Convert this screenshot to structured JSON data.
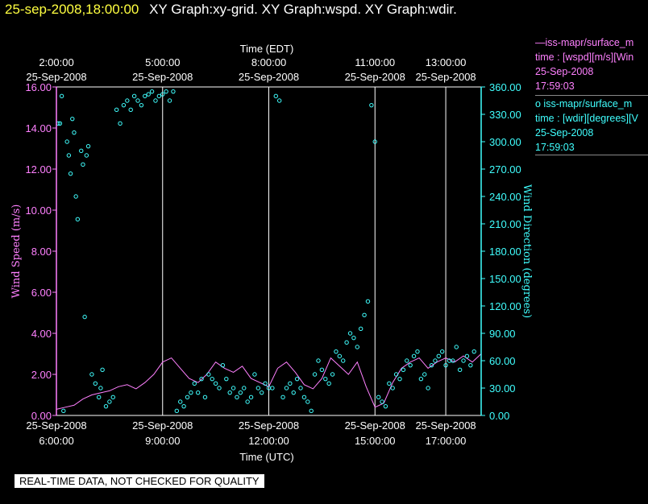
{
  "title": {
    "date": "25-sep-2008,18:00:00",
    "graphs": "XY Graph:xy-grid.  XY Graph:wspd.  XY Graph:wdir."
  },
  "legend": {
    "wspd": [
      "—iss-mapr/surface_m",
      "time : [wspd][m/s][Win",
      "25-Sep-2008",
      "17:59:03"
    ],
    "wdir": [
      "o  iss-mapr/surface_m",
      "time : [wdir][degrees][V",
      "25-Sep-2008",
      "17:59:03"
    ]
  },
  "disclaimer": "REAL-TIME DATA, NOT CHECKED FOR QUALITY",
  "colors": {
    "wspd": "#ff80ff",
    "wdir": "#40ffff",
    "grid": "#ffffff",
    "title_date": "#ffff40"
  },
  "chart_data": {
    "type": "scatter",
    "top_axis_title": "Time (EDT)",
    "top_ticks": [
      {
        "x": 6.0,
        "time": "2:00:00",
        "date": "25-Sep-2008"
      },
      {
        "x": 9.0,
        "time": "5:00:00",
        "date": "25-Sep-2008"
      },
      {
        "x": 12.0,
        "time": "8:00:00",
        "date": "25-Sep-2008"
      },
      {
        "x": 15.0,
        "time": "11:00:00",
        "date": "25-Sep-2008"
      },
      {
        "x": 17.0,
        "time": "13:00:00",
        "date": "25-Sep-2008"
      }
    ],
    "bottom_axis_title": "Time (UTC)",
    "bottom_ticks": [
      {
        "x": 6.0,
        "time": "6:00:00",
        "date": "25-Sep-2008"
      },
      {
        "x": 9.0,
        "time": "9:00:00",
        "date": "25-Sep-2008"
      },
      {
        "x": 12.0,
        "time": "12:00:00",
        "date": "25-Sep-2008"
      },
      {
        "x": 15.0,
        "time": "15:00:00",
        "date": "25-Sep-2008"
      },
      {
        "x": 17.0,
        "time": "17:00:00",
        "date": "25-Sep-2008"
      }
    ],
    "xlim": [
      6.0,
      18.0
    ],
    "left_axis": {
      "label": "Wind Speed (m/s)",
      "ylim": [
        0,
        16
      ],
      "ticks": [
        "0.00",
        "2.00",
        "4.00",
        "6.00",
        "8.00",
        "10.00",
        "12.00",
        "14.00",
        "16.00"
      ]
    },
    "right_axis": {
      "label": "Wind Direction (degrees)",
      "ylim": [
        0,
        360
      ],
      "ticks": [
        "0.00",
        "30.00",
        "60.00",
        "90.00",
        "120.00",
        "150.00",
        "180.00",
        "210.00",
        "240.00",
        "270.00",
        "300.00",
        "330.00",
        "360.00"
      ]
    },
    "grid": "vertical at tick times",
    "series": [
      {
        "name": "iss-mapr/surface_m wspd",
        "type": "line",
        "axis": "left",
        "x": [
          6.0,
          6.25,
          6.5,
          6.75,
          7.0,
          7.25,
          7.5,
          7.75,
          8.0,
          8.25,
          8.5,
          8.75,
          9.0,
          9.25,
          9.5,
          9.75,
          10.0,
          10.25,
          10.5,
          10.75,
          11.0,
          11.25,
          11.5,
          11.75,
          12.0,
          12.25,
          12.5,
          12.75,
          13.0,
          13.25,
          13.5,
          13.75,
          14.0,
          14.25,
          14.5,
          14.75,
          15.0,
          15.25,
          15.5,
          15.75,
          16.0,
          16.25,
          16.5,
          16.75,
          17.0,
          17.25,
          17.5,
          17.75,
          18.0
        ],
        "y": [
          0.3,
          0.4,
          0.5,
          0.8,
          1.0,
          1.1,
          1.2,
          1.4,
          1.5,
          1.3,
          1.6,
          2.0,
          2.6,
          2.8,
          2.3,
          1.8,
          1.6,
          2.0,
          2.6,
          2.3,
          2.1,
          2.4,
          1.8,
          1.6,
          1.4,
          2.3,
          2.6,
          2.1,
          1.5,
          1.3,
          1.8,
          2.8,
          2.4,
          2.0,
          2.6,
          1.4,
          0.4,
          0.6,
          1.6,
          2.3,
          2.6,
          2.8,
          2.3,
          2.6,
          2.8,
          2.6,
          2.9,
          2.6,
          3.0
        ]
      },
      {
        "name": "iss-mapr/surface_m wdir",
        "type": "scatter",
        "axis": "right",
        "x": [
          6.05,
          6.1,
          6.15,
          6.2,
          6.3,
          6.35,
          6.4,
          6.45,
          6.5,
          6.55,
          6.6,
          6.7,
          6.75,
          6.8,
          6.85,
          6.9,
          7.0,
          7.1,
          7.2,
          7.25,
          7.3,
          7.4,
          7.5,
          7.6,
          7.7,
          7.8,
          7.9,
          8.0,
          8.1,
          8.2,
          8.3,
          8.4,
          8.5,
          8.6,
          8.7,
          8.8,
          8.9,
          9.0,
          9.1,
          9.2,
          9.3,
          9.4,
          9.5,
          9.6,
          9.7,
          9.8,
          9.9,
          10.0,
          10.1,
          10.2,
          10.3,
          10.4,
          10.5,
          10.6,
          10.7,
          10.8,
          10.9,
          11.0,
          11.1,
          11.2,
          11.3,
          11.4,
          11.5,
          11.6,
          11.7,
          11.8,
          11.9,
          12.0,
          12.1,
          12.2,
          12.3,
          12.4,
          12.5,
          12.6,
          12.7,
          12.8,
          12.9,
          13.0,
          13.1,
          13.2,
          13.3,
          13.4,
          13.5,
          13.6,
          13.7,
          13.8,
          13.9,
          14.0,
          14.1,
          14.2,
          14.3,
          14.4,
          14.5,
          14.6,
          14.7,
          14.8,
          14.9,
          15.0,
          15.1,
          15.2,
          15.3,
          15.4,
          15.5,
          15.6,
          15.7,
          15.8,
          15.9,
          16.0,
          16.1,
          16.2,
          16.3,
          16.4,
          16.5,
          16.6,
          16.7,
          16.8,
          16.9,
          17.0,
          17.1,
          17.2,
          17.3,
          17.4,
          17.5,
          17.6,
          17.7,
          17.8
        ],
        "y": [
          320,
          320,
          350,
          5,
          300,
          285,
          265,
          325,
          310,
          240,
          215,
          290,
          275,
          108,
          285,
          295,
          45,
          35,
          20,
          30,
          50,
          10,
          15,
          20,
          335,
          320,
          340,
          345,
          335,
          350,
          345,
          340,
          350,
          352,
          355,
          345,
          350,
          352,
          355,
          345,
          355,
          5,
          15,
          10,
          20,
          25,
          35,
          25,
          40,
          20,
          45,
          40,
          35,
          30,
          55,
          40,
          25,
          30,
          20,
          25,
          30,
          15,
          20,
          45,
          30,
          25,
          35,
          30,
          30,
          350,
          345,
          20,
          30,
          35,
          25,
          40,
          30,
          20,
          15,
          5,
          45,
          60,
          50,
          40,
          35,
          45,
          70,
          65,
          60,
          80,
          90,
          85,
          75,
          95,
          110,
          125,
          340,
          300,
          20,
          15,
          10,
          35,
          30,
          45,
          40,
          50,
          60,
          55,
          65,
          70,
          40,
          45,
          30,
          55,
          60,
          65,
          70,
          55,
          60,
          60,
          75,
          50,
          60,
          65,
          55,
          70
        ]
      }
    ]
  }
}
